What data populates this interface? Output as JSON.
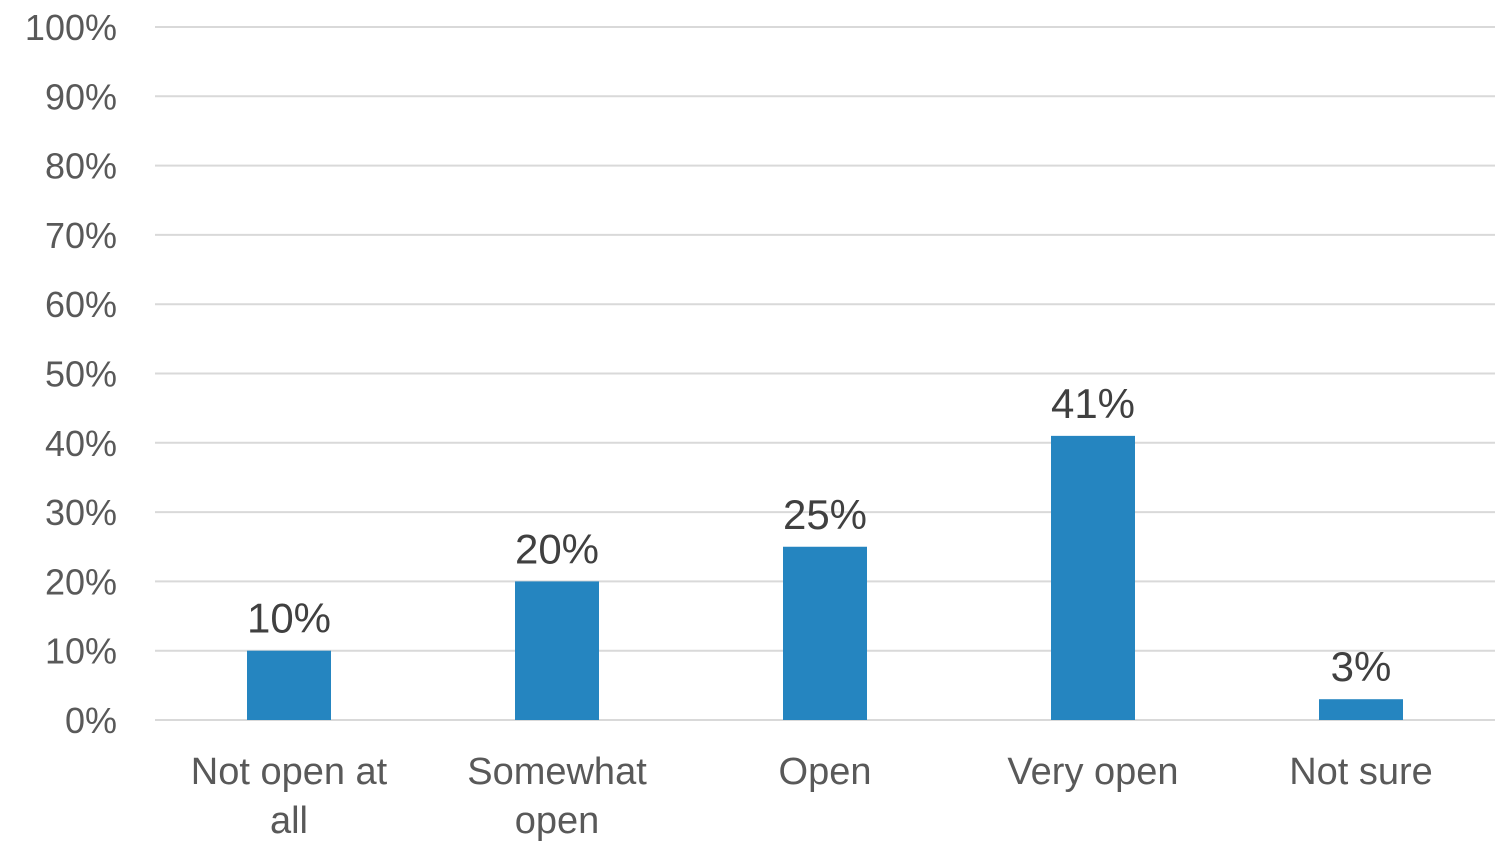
{
  "chart_data": {
    "type": "bar",
    "categories": [
      [
        "Not open at",
        "all"
      ],
      [
        "Somewhat",
        "open"
      ],
      [
        "Open"
      ],
      [
        "Very open"
      ],
      [
        "Not sure"
      ]
    ],
    "values": [
      10,
      20,
      25,
      41,
      3
    ],
    "data_labels": [
      "10%",
      "20%",
      "25%",
      "41%",
      "3%"
    ],
    "y_ticks": [
      "0%",
      "10%",
      "20%",
      "30%",
      "40%",
      "50%",
      "60%",
      "70%",
      "80%",
      "90%",
      "100%"
    ],
    "ylim": [
      0,
      100
    ],
    "grid": true,
    "legend": "none",
    "colors": {
      "bar": "#2585C0",
      "grid": "#D9D9D9",
      "axis_text": "#595959",
      "label_text": "#404040"
    }
  }
}
